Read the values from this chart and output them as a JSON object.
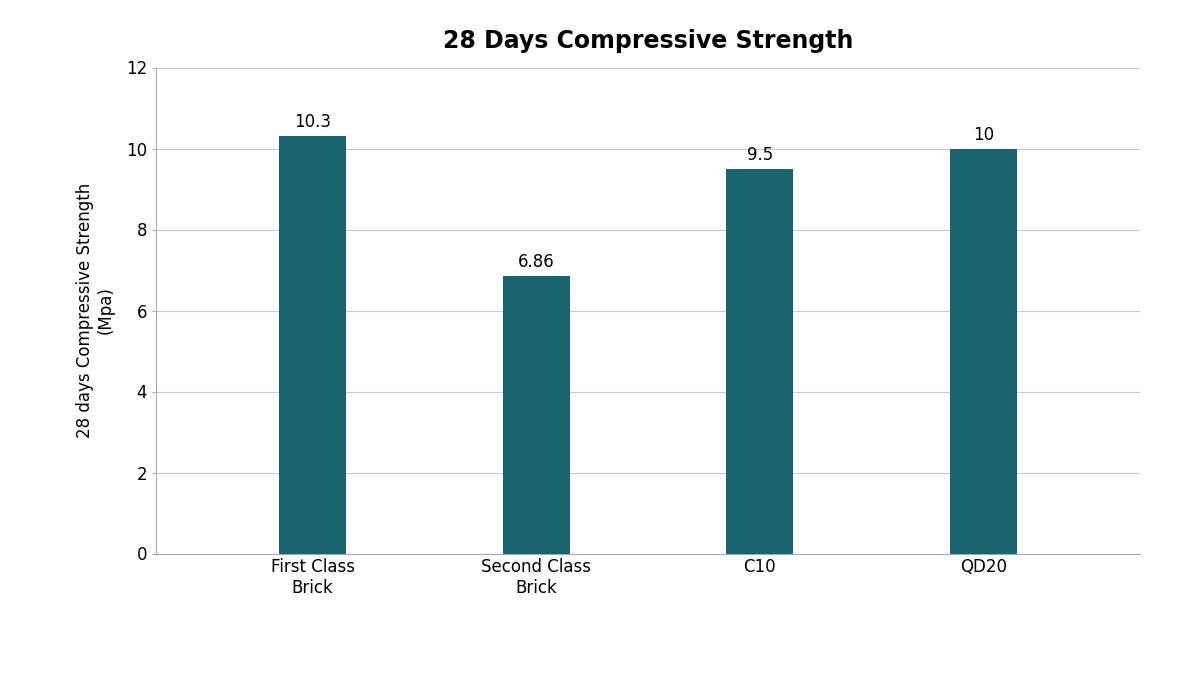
{
  "categories": [
    "First Class\nBrick",
    "Second Class\nBrick",
    "C10",
    "QD20"
  ],
  "values": [
    10.3,
    6.86,
    9.5,
    10
  ],
  "bar_color": "#1a6470",
  "title": "28 Days Compressive Strength",
  "ylabel_line1": "28 days Compressive Strength",
  "ylabel_line2": "(Mpa)",
  "ylim": [
    0,
    12
  ],
  "yticks": [
    0,
    2,
    4,
    6,
    8,
    10,
    12
  ],
  "bar_width": 0.3,
  "title_fontsize": 17,
  "label_fontsize": 12,
  "tick_fontsize": 12,
  "annotation_fontsize": 12,
  "background_color": "#ffffff",
  "grid_color": "#c8c8c8"
}
